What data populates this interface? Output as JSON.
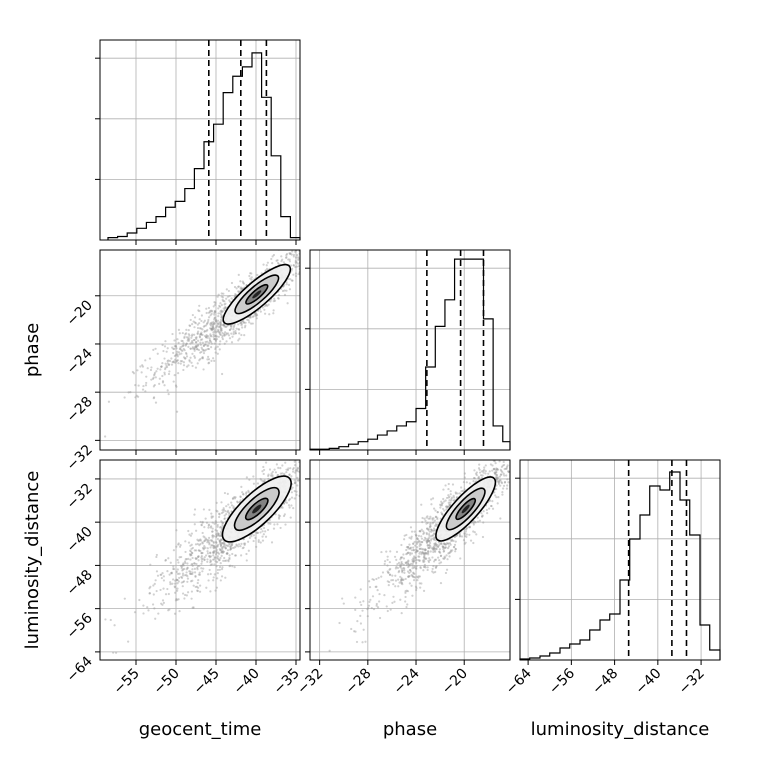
{
  "chart_data": {
    "type": "corner",
    "parameters": [
      "geocent_time",
      "phase",
      "luminosity_distance"
    ],
    "axis_labels": {
      "geocent_time": "geocent_time",
      "phase": "phase",
      "luminosity_distance": "luminosity_distance"
    },
    "ranges": {
      "geocent_time": [
        -59.5,
        -34.5
      ],
      "phase": [
        -32.8,
        -16.2
      ],
      "luminosity_distance": [
        -65.5,
        -28.5
      ]
    },
    "ticks": {
      "geocent_time": [
        -55,
        -50,
        -45,
        -40,
        -35
      ],
      "phase": [
        -32,
        -28,
        -24,
        -20
      ],
      "luminosity_distance": [
        -64,
        -56,
        -48,
        -40,
        -32
      ]
    },
    "quantiles": {
      "geocent_time": [
        -45.9,
        -41.9,
        -38.7
      ],
      "phase": [
        -23.1,
        -20.3,
        -18.4
      ],
      "luminosity_distance": [
        -45.4,
        -37.4,
        -34.7
      ]
    },
    "histograms": {
      "geocent_time": {
        "bin_edges": [
          -58.5,
          -57.3,
          -56.1,
          -54.9,
          -53.7,
          -52.5,
          -51.3,
          -50.1,
          -48.9,
          -47.7,
          -46.5,
          -45.3,
          -44.1,
          -42.9,
          -41.7,
          -40.5,
          -39.3,
          -38.1,
          -36.9,
          -35.7,
          -34.5
        ],
        "counts": [
          0.2,
          0.3,
          0.6,
          1.0,
          1.5,
          2.0,
          2.8,
          3.3,
          4.4,
          6.1,
          8.4,
          9.9,
          12.6,
          14.0,
          14.8,
          16.0,
          12.2,
          7.2,
          2.0,
          0.2
        ]
      },
      "phase": {
        "bin_edges": [
          -32.8,
          -32.0,
          -31.2,
          -30.4,
          -29.6,
          -28.8,
          -28.0,
          -27.2,
          -26.4,
          -25.6,
          -24.8,
          -24.0,
          -23.2,
          -22.4,
          -21.6,
          -20.8,
          -20.0,
          -19.2,
          -18.4,
          -17.6,
          -16.8,
          -16.2
        ],
        "counts": [
          0.1,
          0.1,
          0.2,
          0.4,
          0.7,
          1.0,
          1.3,
          1.8,
          2.3,
          2.9,
          3.4,
          5.0,
          10.0,
          14.9,
          18.1,
          23.0,
          23.0,
          23.0,
          15.8,
          2.9,
          1.0
        ]
      },
      "luminosity_distance": {
        "bin_edges": [
          -65.5,
          -63.7,
          -61.8,
          -60.0,
          -58.1,
          -56.3,
          -54.4,
          -52.6,
          -50.7,
          -48.9,
          -47.0,
          -45.2,
          -43.3,
          -41.5,
          -39.6,
          -37.8,
          -35.9,
          -34.1,
          -32.2,
          -30.4,
          -28.5
        ],
        "counts": [
          0.1,
          0.2,
          0.4,
          0.7,
          1.2,
          1.6,
          2.0,
          3.0,
          4.0,
          4.6,
          8.0,
          12.1,
          14.5,
          17.4,
          17.0,
          18.8,
          16.0,
          12.5,
          3.5,
          1.0
        ]
      }
    },
    "histogram_ylim": {
      "geocent_time": [
        0,
        17.1
      ],
      "phase": [
        0,
        24.1
      ],
      "luminosity_distance": [
        0,
        20.0
      ]
    },
    "density": {
      "geocent_time|phase": {
        "mean": [
          -41.5,
          -20.8
        ],
        "sd": [
          4.0,
          2.3
        ],
        "corr": 0.92
      },
      "geocent_time|luminosity_distance": {
        "mean": [
          -41.5,
          -39.8
        ],
        "sd": [
          4.0,
          5.6
        ],
        "corr": 0.88
      },
      "phase|luminosity_distance": {
        "mean": [
          -20.8,
          -39.8
        ],
        "sd": [
          2.3,
          5.6
        ],
        "corr": 0.91
      }
    },
    "grid": true
  }
}
